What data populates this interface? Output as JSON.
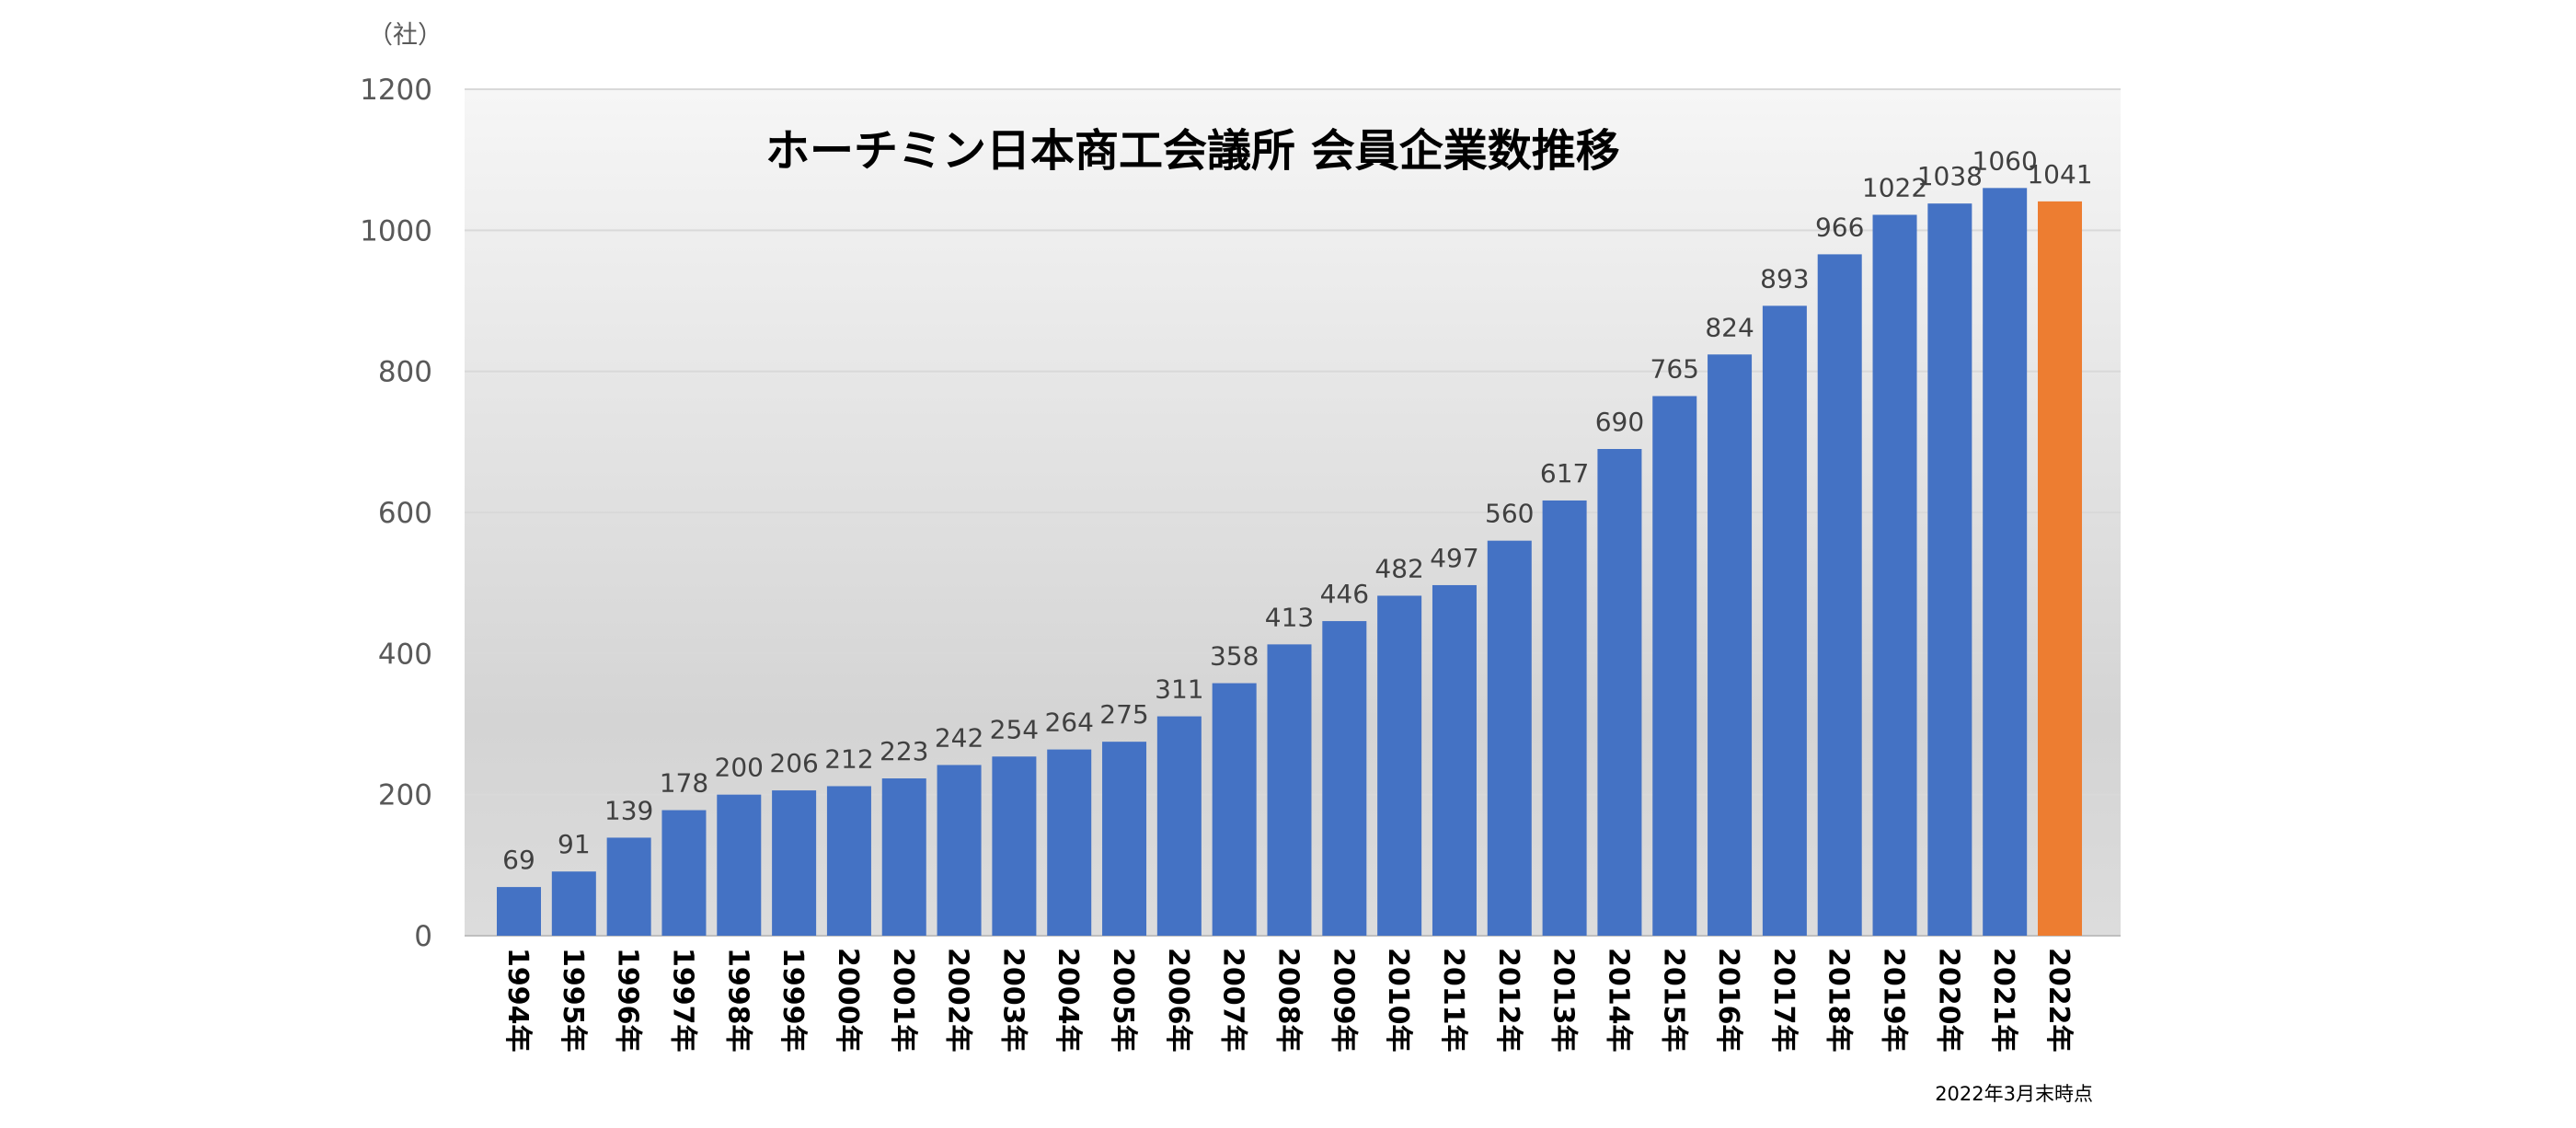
{
  "chart_data": {
    "type": "bar",
    "title": "ホーチミン日本商工会議所 会員企業数推移",
    "unit_label": "（社）",
    "note": "2022年3月末時点",
    "categories": [
      "1994年",
      "1995年",
      "1996年",
      "1997年",
      "1998年",
      "1999年",
      "2000年",
      "2001年",
      "2002年",
      "2003年",
      "2004年",
      "2005年",
      "2006年",
      "2007年",
      "2008年",
      "2009年",
      "2010年",
      "2011年",
      "2012年",
      "2013年",
      "2014年",
      "2015年",
      "2016年",
      "2017年",
      "2018年",
      "2019年",
      "2020年",
      "2021年",
      "2022年"
    ],
    "series": [
      {
        "values": [
          69,
          91,
          139,
          178,
          200,
          206,
          212,
          223,
          242,
          254,
          264,
          275,
          311,
          358,
          413,
          446,
          482,
          497,
          560,
          617,
          690,
          765,
          824,
          893,
          966,
          1022,
          1038,
          1060,
          1041
        ]
      }
    ],
    "data_labels": [
      "69",
      "91",
      "139",
      "178",
      "200",
      "206",
      "212",
      "223",
      "242",
      "254",
      "264",
      "275",
      "311",
      "358",
      "413",
      "446",
      "482",
      "497",
      "560",
      "617",
      "690",
      "765",
      "824",
      "893",
      "966",
      "1022",
      "1038",
      "1060",
      "1041"
    ],
    "y_ticks": [
      0,
      200,
      400,
      600,
      800,
      1000,
      1200
    ],
    "y_tick_labels": [
      "0",
      "200",
      "400",
      "600",
      "800",
      "1000",
      "1200"
    ],
    "ylim": [
      0,
      1200
    ],
    "grid": true,
    "colors": {
      "bar": "#4472C4",
      "highlight_bar": "#ED7D31",
      "gridline": "#D9D9D9"
    },
    "highlight_index": 28
  }
}
